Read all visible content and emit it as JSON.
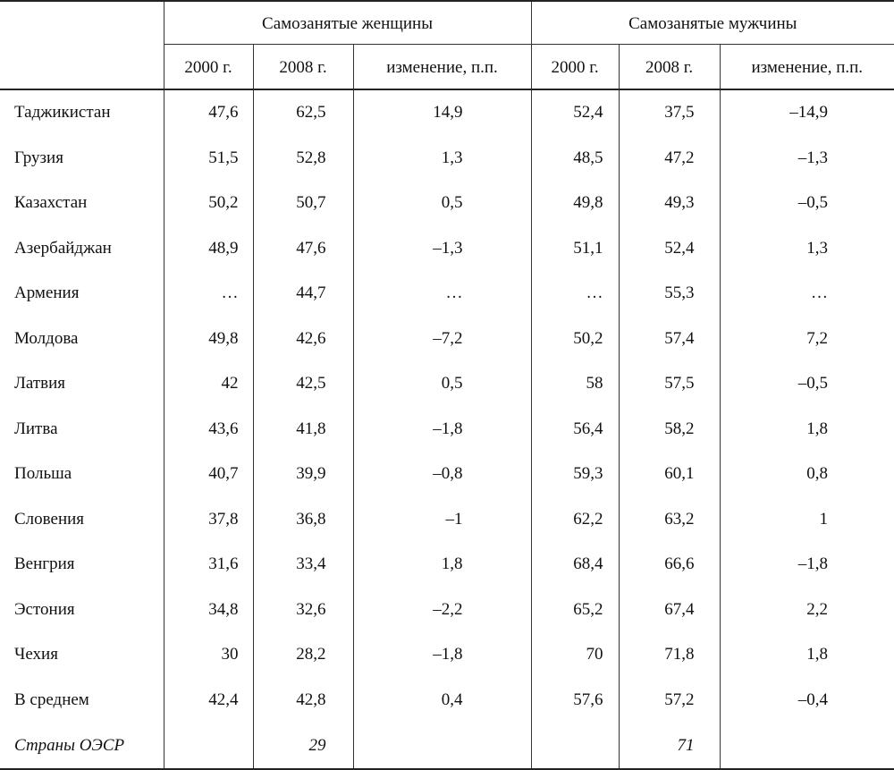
{
  "table": {
    "group_headers": {
      "women": "Самозанятые женщины",
      "men": "Самозанятые мужчины"
    },
    "sub_headers": {
      "y2000": "2000 г.",
      "y2008": "2008 г.",
      "change": "изменение, п.п."
    },
    "rows": [
      {
        "country": "Таджикистан",
        "w2000": "47,6",
        "w2008": "62,5",
        "wchg": "14,9",
        "m2000": "52,4",
        "m2008": "37,5",
        "mchg": "–14,9"
      },
      {
        "country": "Грузия",
        "w2000": "51,5",
        "w2008": "52,8",
        "wchg": "1,3",
        "m2000": "48,5",
        "m2008": "47,2",
        "mchg": "–1,3"
      },
      {
        "country": "Казахстан",
        "w2000": "50,2",
        "w2008": "50,7",
        "wchg": "0,5",
        "m2000": "49,8",
        "m2008": "49,3",
        "mchg": "–0,5"
      },
      {
        "country": "Азербайджан",
        "w2000": "48,9",
        "w2008": "47,6",
        "wchg": "–1,3",
        "m2000": "51,1",
        "m2008": "52,4",
        "mchg": "1,3"
      },
      {
        "country": "Армения",
        "w2000": "…",
        "w2008": "44,7",
        "wchg": "…",
        "m2000": "…",
        "m2008": "55,3",
        "mchg": "…"
      },
      {
        "country": "Молдова",
        "w2000": "49,8",
        "w2008": "42,6",
        "wchg": "–7,2",
        "m2000": "50,2",
        "m2008": "57,4",
        "mchg": "7,2"
      },
      {
        "country": "Латвия",
        "w2000": "42",
        "w2008": "42,5",
        "wchg": "0,5",
        "m2000": "58",
        "m2008": "57,5",
        "mchg": "–0,5"
      },
      {
        "country": "Литва",
        "w2000": "43,6",
        "w2008": "41,8",
        "wchg": "–1,8",
        "m2000": "56,4",
        "m2008": "58,2",
        "mchg": "1,8"
      },
      {
        "country": "Польша",
        "w2000": "40,7",
        "w2008": "39,9",
        "wchg": "–0,8",
        "m2000": "59,3",
        "m2008": "60,1",
        "mchg": "0,8"
      },
      {
        "country": "Словения",
        "w2000": "37,8",
        "w2008": "36,8",
        "wchg": "–1",
        "m2000": "62,2",
        "m2008": "63,2",
        "mchg": "1"
      },
      {
        "country": "Венгрия",
        "w2000": "31,6",
        "w2008": "33,4",
        "wchg": "1,8",
        "m2000": "68,4",
        "m2008": "66,6",
        "mchg": "–1,8"
      },
      {
        "country": "Эстония",
        "w2000": "34,8",
        "w2008": "32,6",
        "wchg": "–2,2",
        "m2000": "65,2",
        "m2008": "67,4",
        "mchg": "2,2"
      },
      {
        "country": "Чехия",
        "w2000": "30",
        "w2008": "28,2",
        "wchg": "–1,8",
        "m2000": "70",
        "m2008": "71,8",
        "mchg": "1,8"
      },
      {
        "country": "В среднем",
        "w2000": "42,4",
        "w2008": "42,8",
        "wchg": "0,4",
        "m2000": "57,6",
        "m2008": "57,2",
        "mchg": "–0,4"
      }
    ],
    "oecd": {
      "country": "Страны ОЭСР",
      "w2000": "",
      "w2008": "29",
      "wchg": "",
      "m2000": "",
      "m2008": "71",
      "mchg": ""
    }
  }
}
